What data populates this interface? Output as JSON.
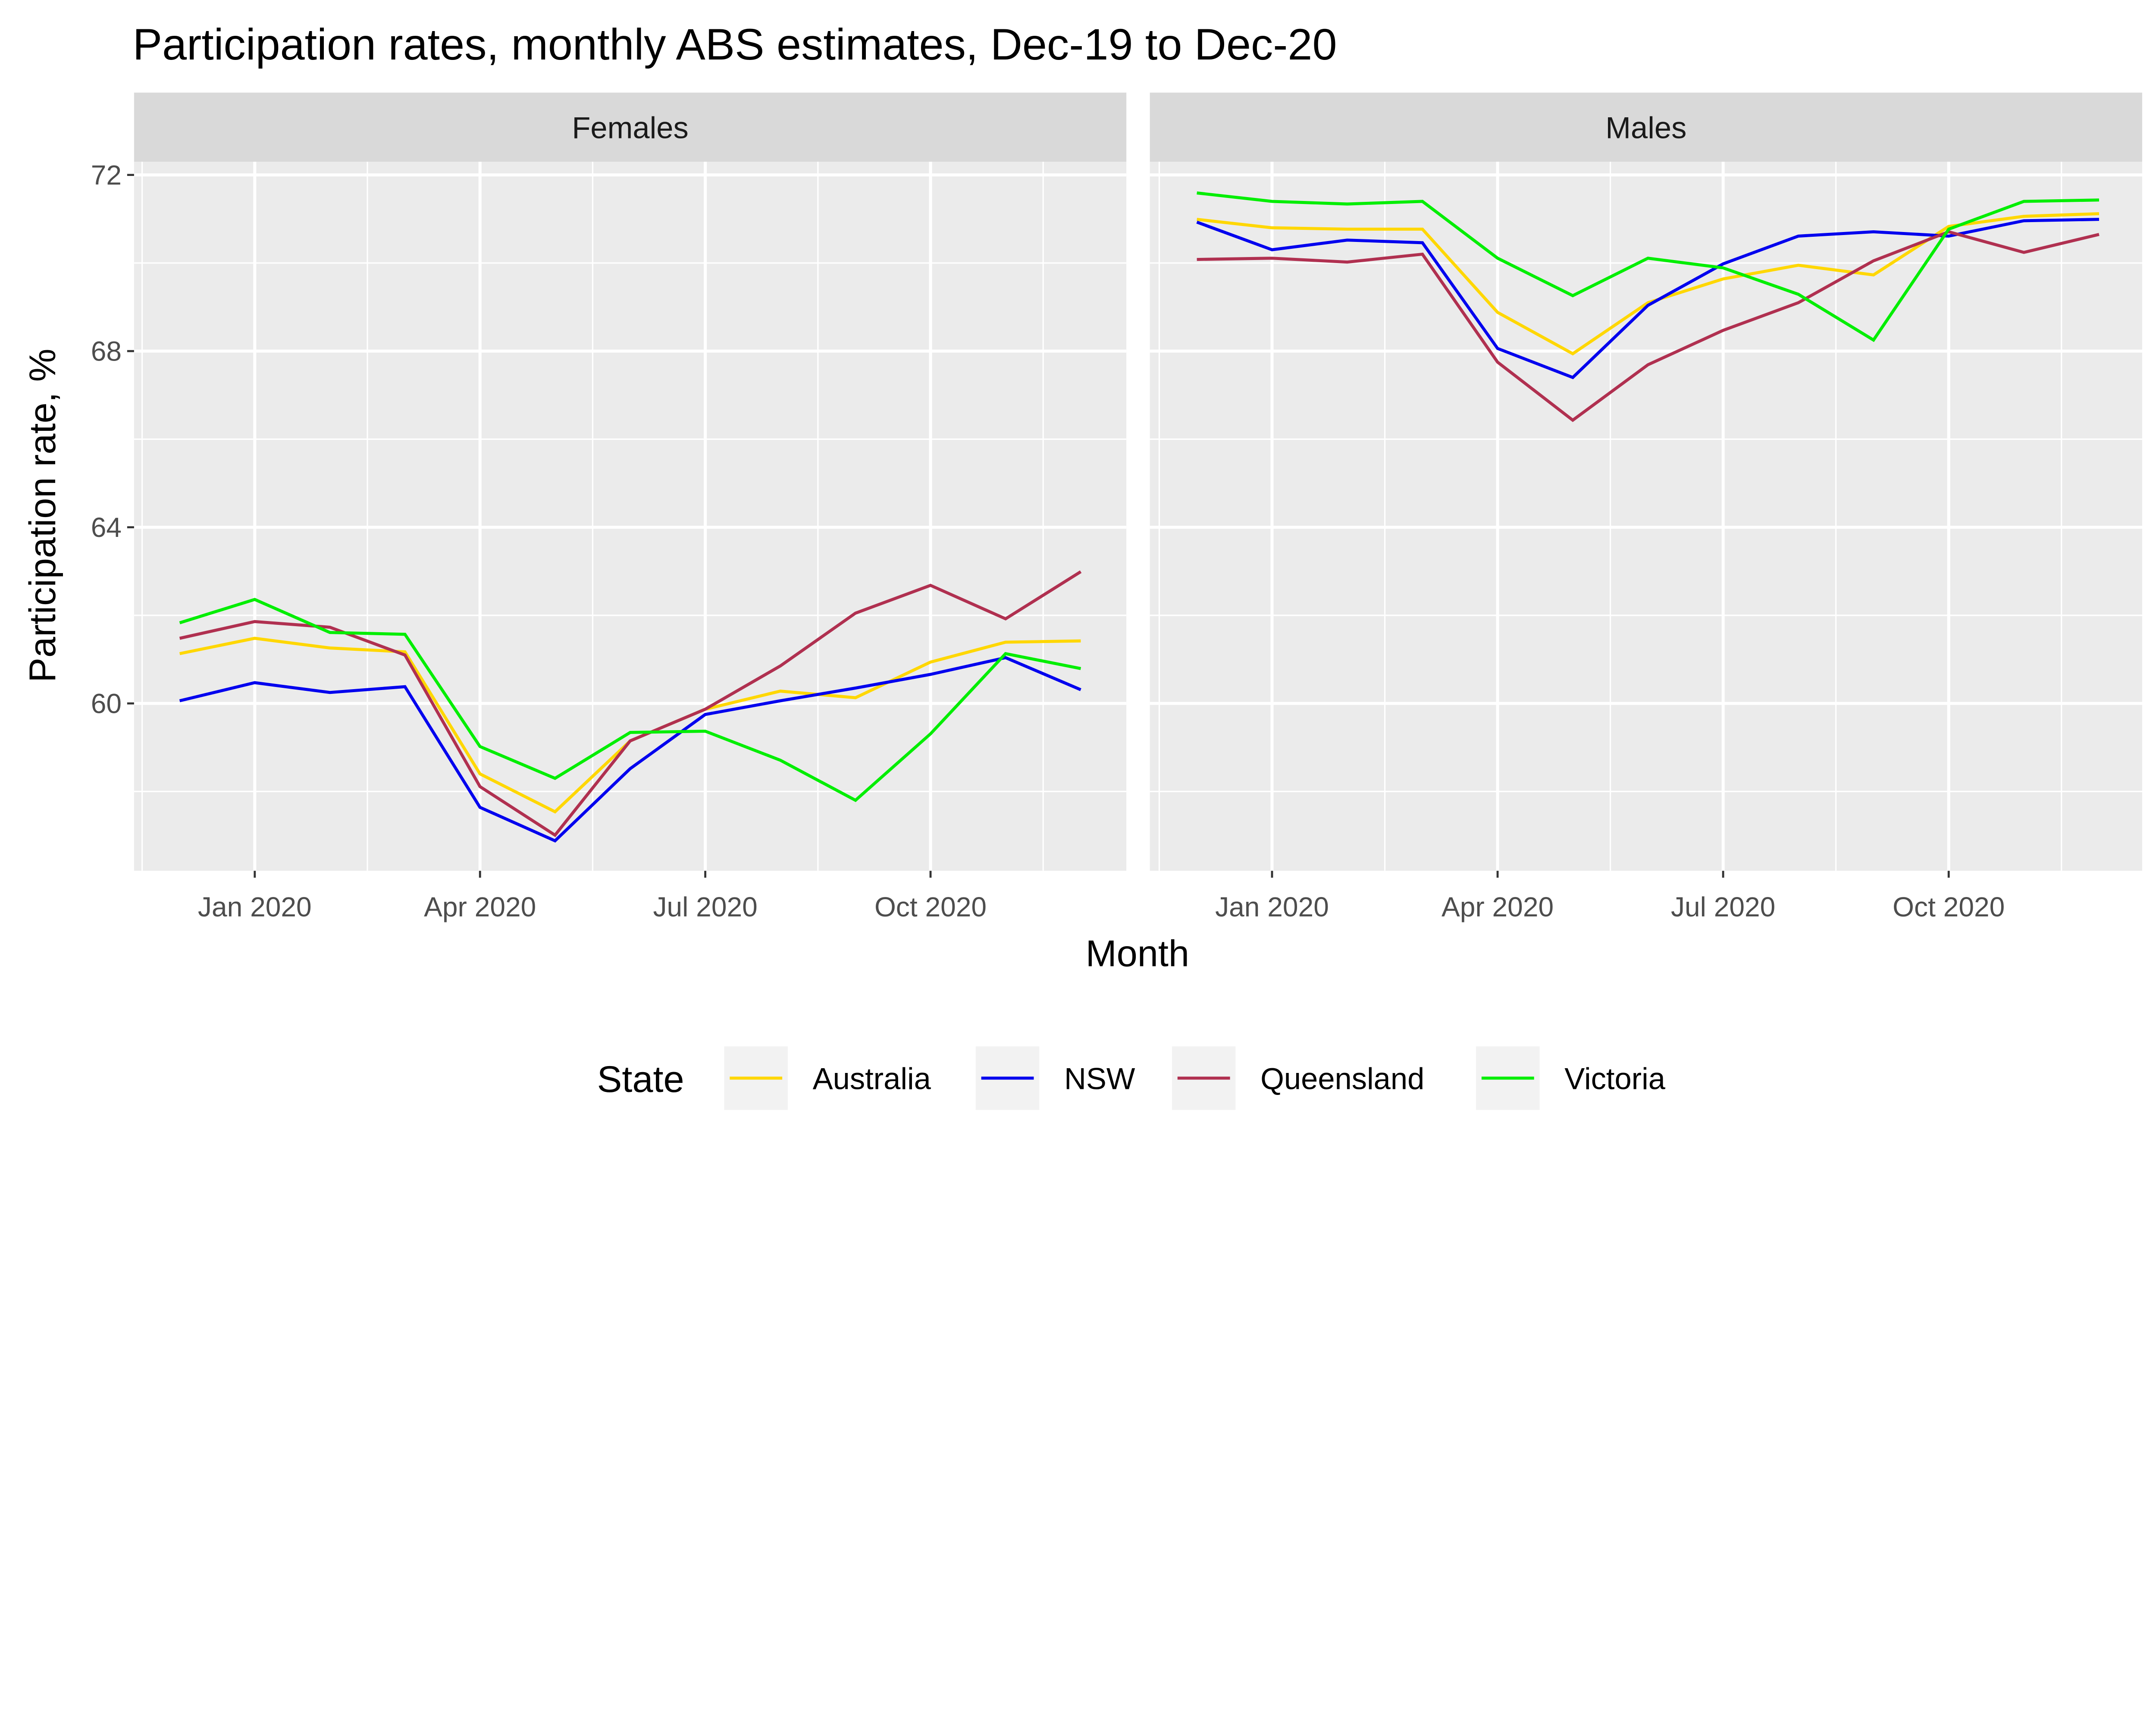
{
  "chart_data": {
    "type": "line",
    "title": "Participation rates, monthly ABS estimates, Dec-19 to Dec-20",
    "xlabel": "Month",
    "ylabel": "Participation rate, %",
    "ylim": [
      56.2,
      72.3
    ],
    "y_ticks": [
      60,
      64,
      68,
      72
    ],
    "x_ticks": [
      {
        "date": "2020-01",
        "label": "Jan 2020"
      },
      {
        "date": "2020-04",
        "label": "Apr 2020"
      },
      {
        "date": "2020-07",
        "label": "Jul 2020"
      },
      {
        "date": "2020-10",
        "label": "Oct 2020"
      }
    ],
    "x": [
      "2019-12",
      "2020-01",
      "2020-02",
      "2020-03",
      "2020-04",
      "2020-05",
      "2020-06",
      "2020-07",
      "2020-08",
      "2020-09",
      "2020-10",
      "2020-11",
      "2020-12"
    ],
    "grid": true,
    "legend": {
      "title": "State",
      "placement": "bottom"
    },
    "panels": [
      {
        "name": "Females",
        "series": [
          {
            "name": "Australia",
            "color": "#FFD700",
            "values": [
              61.13,
              61.48,
              61.26,
              61.17,
              58.4,
              57.54,
              59.15,
              59.87,
              60.28,
              60.13,
              60.94,
              61.39,
              61.42
            ]
          },
          {
            "name": "NSW",
            "color": "#0000EE",
            "values": [
              60.06,
              60.47,
              60.25,
              60.38,
              57.64,
              56.88,
              58.52,
              59.75,
              60.06,
              60.35,
              60.66,
              61.04,
              60.31
            ]
          },
          {
            "name": "Queensland",
            "color": "#B03050",
            "values": [
              61.48,
              61.86,
              61.73,
              61.1,
              58.11,
              57.01,
              59.15,
              59.87,
              60.85,
              62.05,
              62.68,
              61.92,
              62.99
            ]
          },
          {
            "name": "Victoria",
            "color": "#00EE00",
            "values": [
              61.83,
              62.36,
              61.61,
              61.57,
              59.02,
              58.3,
              59.34,
              59.37,
              58.71,
              57.8,
              59.31,
              61.13,
              60.79
            ]
          }
        ]
      },
      {
        "name": "Males",
        "series": [
          {
            "name": "Australia",
            "color": "#FFD700",
            "values": [
              70.99,
              70.8,
              70.77,
              70.77,
              68.88,
              67.94,
              69.1,
              69.64,
              69.95,
              69.73,
              70.83,
              71.06,
              71.12
            ]
          },
          {
            "name": "NSW",
            "color": "#0000EE",
            "values": [
              70.93,
              70.3,
              70.52,
              70.46,
              68.06,
              67.4,
              69.04,
              69.98,
              70.61,
              70.71,
              70.61,
              70.96,
              70.99
            ]
          },
          {
            "name": "Queensland",
            "color": "#B03050",
            "values": [
              70.08,
              70.11,
              70.02,
              70.2,
              67.75,
              66.43,
              67.69,
              68.47,
              69.1,
              70.05,
              70.71,
              70.24,
              70.65
            ]
          },
          {
            "name": "Victoria",
            "color": "#00EE00",
            "values": [
              71.59,
              71.4,
              71.34,
              71.4,
              70.11,
              69.26,
              70.11,
              69.89,
              69.29,
              68.25,
              70.77,
              71.4,
              71.43
            ]
          }
        ]
      }
    ]
  }
}
